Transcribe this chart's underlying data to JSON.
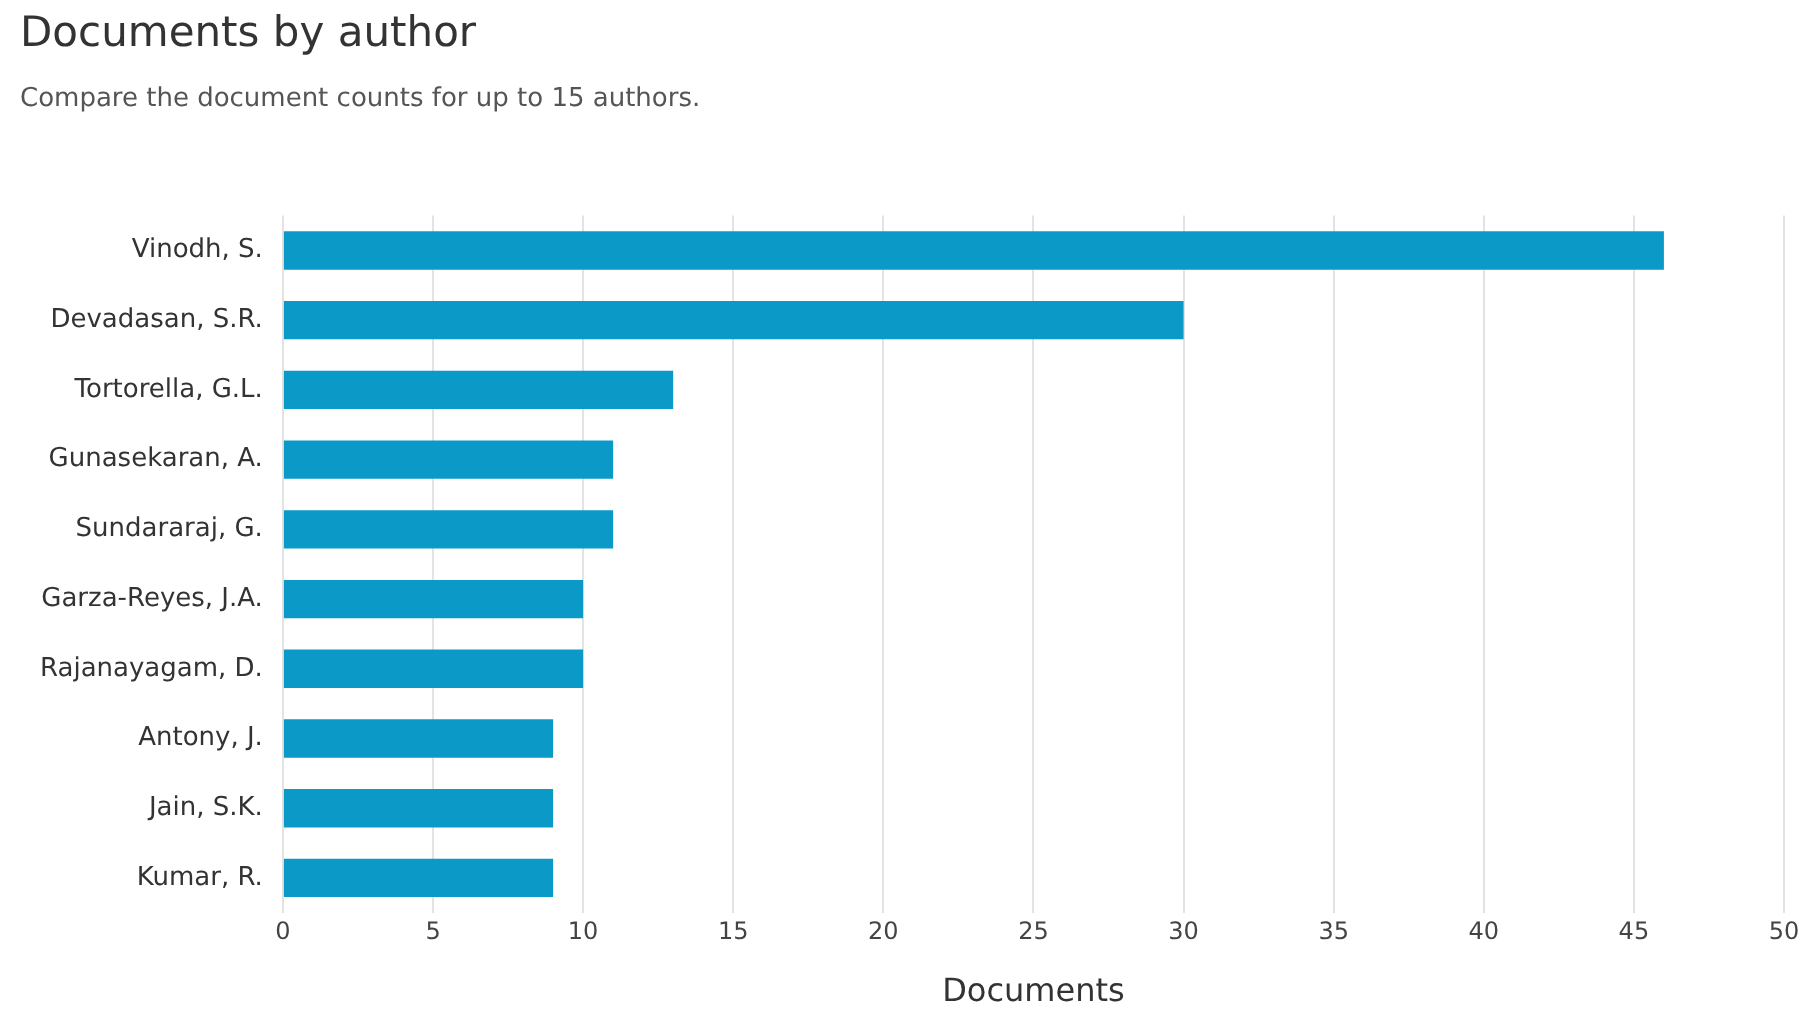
{
  "chart_data": {
    "type": "bar",
    "orientation": "horizontal",
    "title": "Documents by author",
    "subtitle": "Compare the document counts for up to 15 authors.",
    "xlabel": "Documents",
    "categories": [
      "Vinodh, S.",
      "Devadasan, S.R.",
      "Tortorella, G.L.",
      "Gunasekaran, A.",
      "Sundararaj, G.",
      "Garza-Reyes, J.A.",
      "Rajanayagam, D.",
      "Antony, J.",
      "Jain, S.K.",
      "Kumar, R."
    ],
    "values": [
      46,
      30,
      13,
      11,
      11,
      10,
      10,
      9,
      9,
      9
    ],
    "color": "#0b9ac8",
    "xlim": [
      0,
      50
    ],
    "xticks": [
      0,
      5,
      10,
      15,
      20,
      25,
      30,
      35,
      40,
      45,
      50
    ],
    "grid": "x"
  }
}
